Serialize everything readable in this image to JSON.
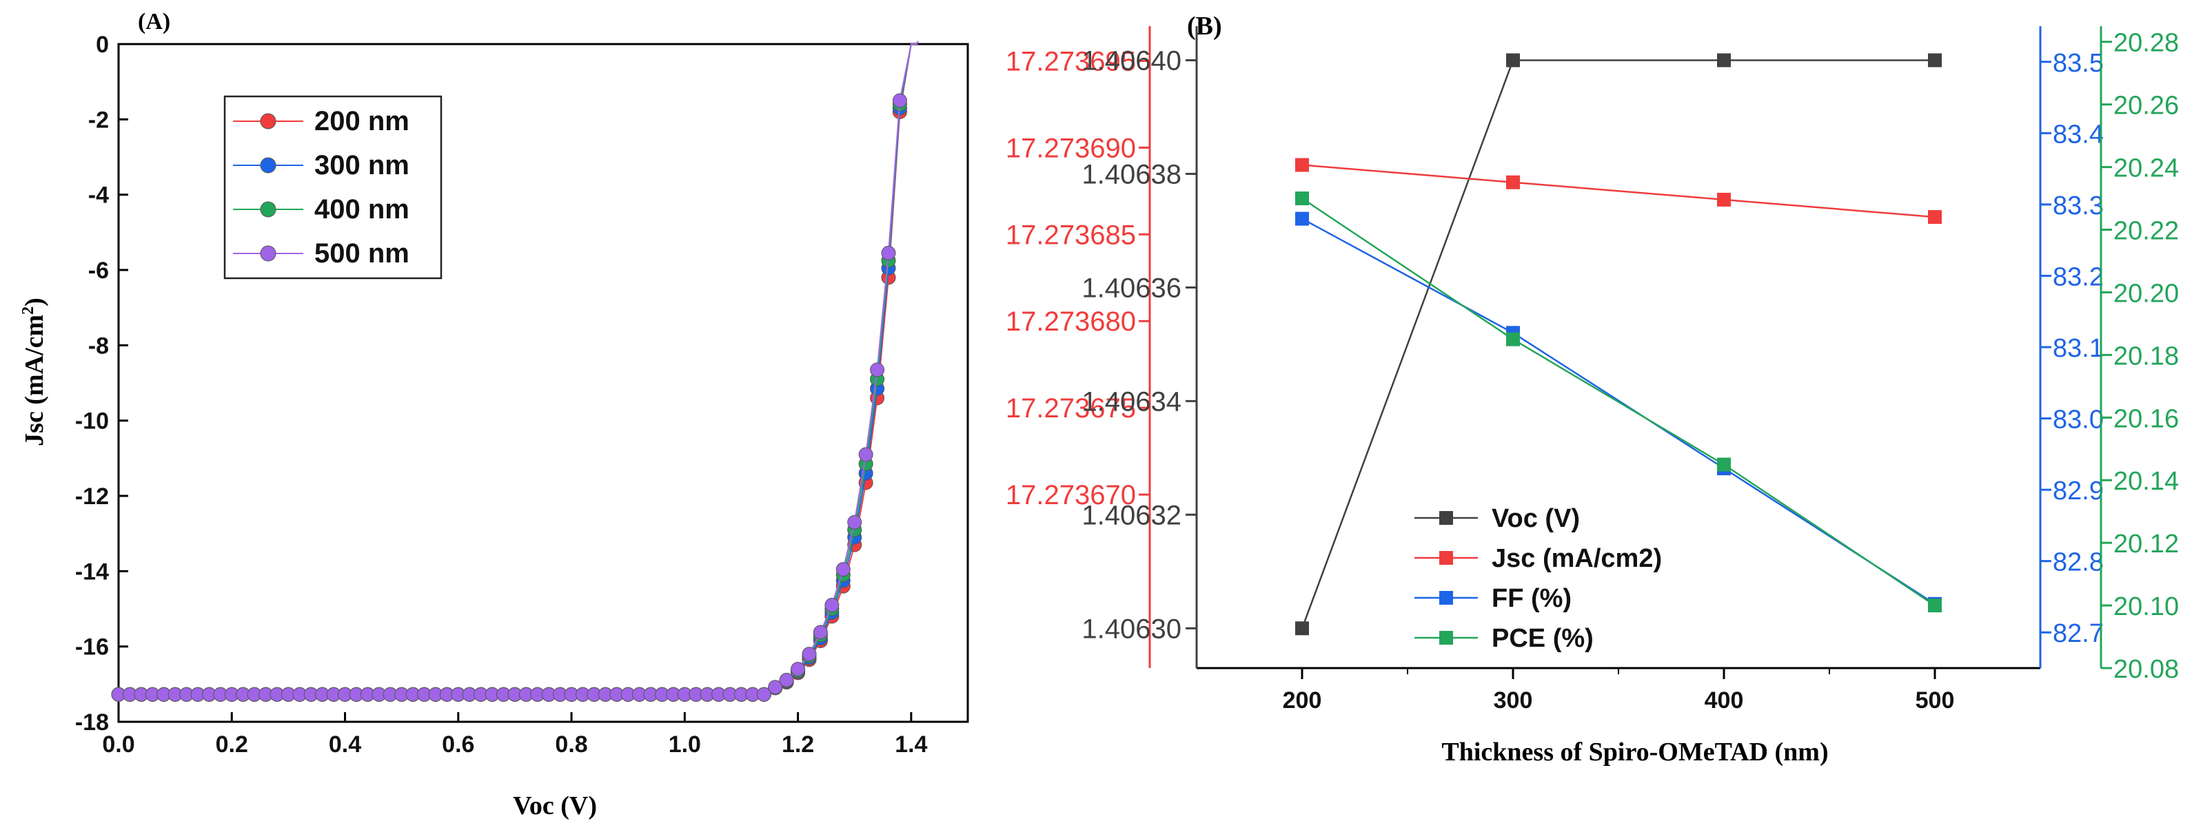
{
  "colors": {
    "axis": "#000000",
    "voc": "#404040",
    "jsc": "#f03c3c",
    "ff": "#1e64e6",
    "pce": "#23a55a",
    "s200": "#f03c3c",
    "s300": "#1e64e6",
    "s400": "#23a55a",
    "s500": "#a064e6"
  },
  "chart_data": [
    {
      "panel": "(A)",
      "type": "scatter",
      "title": "",
      "xlabel": "Voc (V)",
      "ylabel_main": "Jsc (mA/cm",
      "ylabel_sup": "2",
      "ylabel_close": ")",
      "xlim": [
        0.0,
        1.5
      ],
      "ylim": [
        -18,
        0
      ],
      "xticks": [
        "0.0",
        "0.2",
        "0.4",
        "0.6",
        "0.8",
        "1.0",
        "1.2",
        "1.4"
      ],
      "yticks": [
        "0",
        "-2",
        "-4",
        "-6",
        "-8",
        "-10",
        "-12",
        "-14",
        "-16",
        "-18"
      ],
      "legend_position": "top-left",
      "series": [
        {
          "name": "200 nm",
          "jsc": -17.273,
          "x": [
            1.16,
            1.18,
            1.2,
            1.22,
            1.24,
            1.26,
            1.28,
            1.3,
            1.32,
            1.34,
            1.36,
            1.38,
            1.4,
            1.41
          ],
          "y": [
            -17.1,
            -16.95,
            -16.7,
            -16.35,
            -15.85,
            -15.2,
            -14.4,
            -13.3,
            -11.65,
            -9.4,
            -6.2,
            -1.8,
            0.0,
            0.0
          ]
        },
        {
          "name": "300 nm",
          "jsc": -17.273,
          "x": [
            1.16,
            1.18,
            1.2,
            1.22,
            1.24,
            1.26,
            1.28,
            1.3,
            1.32,
            1.34,
            1.36,
            1.38,
            1.4,
            1.41
          ],
          "y": [
            -17.1,
            -16.93,
            -16.67,
            -16.3,
            -15.78,
            -15.1,
            -14.25,
            -13.1,
            -11.4,
            -9.15,
            -5.95,
            -1.7,
            0.0,
            0.0
          ]
        },
        {
          "name": "400 nm",
          "jsc": -17.273,
          "x": [
            1.16,
            1.18,
            1.2,
            1.22,
            1.24,
            1.26,
            1.28,
            1.3,
            1.32,
            1.34,
            1.36,
            1.38,
            1.4,
            1.41
          ],
          "y": [
            -17.09,
            -16.91,
            -16.64,
            -16.25,
            -15.7,
            -15.0,
            -14.1,
            -12.9,
            -11.15,
            -8.9,
            -5.75,
            -1.6,
            0.0,
            0.0
          ]
        },
        {
          "name": "500 nm",
          "jsc": -17.273,
          "x": [
            1.16,
            1.18,
            1.2,
            1.22,
            1.24,
            1.26,
            1.28,
            1.3,
            1.32,
            1.34,
            1.36,
            1.38,
            1.4,
            1.41
          ],
          "y": [
            -17.08,
            -16.89,
            -16.6,
            -16.2,
            -15.62,
            -14.9,
            -13.95,
            -12.7,
            -10.9,
            -8.65,
            -5.55,
            -1.5,
            0.0,
            0.0
          ]
        }
      ]
    },
    {
      "panel": "(B)",
      "type": "line",
      "title": "",
      "xlabel": "Thickness of Spiro-OMeTAD (nm)",
      "categories": [
        "200",
        "300",
        "400",
        "500"
      ],
      "x": [
        200,
        300,
        400,
        500
      ],
      "xlim": [
        150,
        550
      ],
      "legend_position": "bottom-left",
      "axes": {
        "jsc": {
          "side": "left-outer",
          "ylim": [
            17.27366,
            17.273697
          ],
          "ticks": [
            "17.273670",
            "17.273675",
            "17.273680",
            "17.273685",
            "17.273690",
            "17.273695"
          ]
        },
        "voc": {
          "side": "left-inner",
          "ylim": [
            1.406293,
            1.406406
          ],
          "ticks": [
            "1.40630",
            "1.40632",
            "1.40634",
            "1.40636",
            "1.40638",
            "1.40640"
          ]
        },
        "ff": {
          "side": "right-inner",
          "ylim": [
            82.65,
            83.55
          ],
          "ticks": [
            "82.7",
            "82.8",
            "82.9",
            "83.0",
            "83.1",
            "83.2",
            "83.3",
            "83.4",
            "83.5"
          ]
        },
        "pce": {
          "side": "right-outer",
          "ylim": [
            20.08,
            20.285
          ],
          "ticks": [
            "20.08",
            "20.10",
            "20.12",
            "20.14",
            "20.16",
            "20.18",
            "20.20",
            "20.22",
            "20.24",
            "20.26",
            "20.28"
          ]
        }
      },
      "series": [
        {
          "name": "Voc (V)",
          "axis": "voc",
          "values": [
            1.4063,
            1.4064,
            1.4064,
            1.4064
          ]
        },
        {
          "name": "Jsc (mA/cm2)",
          "axis": "jsc",
          "values": [
            17.273689,
            17.273688,
            17.273687,
            17.273686
          ]
        },
        {
          "name": "FF (%)",
          "axis": "ff",
          "values": [
            83.28,
            83.12,
            82.93,
            82.74
          ]
        },
        {
          "name": "PCE (%)",
          "axis": "pce",
          "values": [
            20.23,
            20.185,
            20.145,
            20.1
          ]
        }
      ]
    }
  ]
}
